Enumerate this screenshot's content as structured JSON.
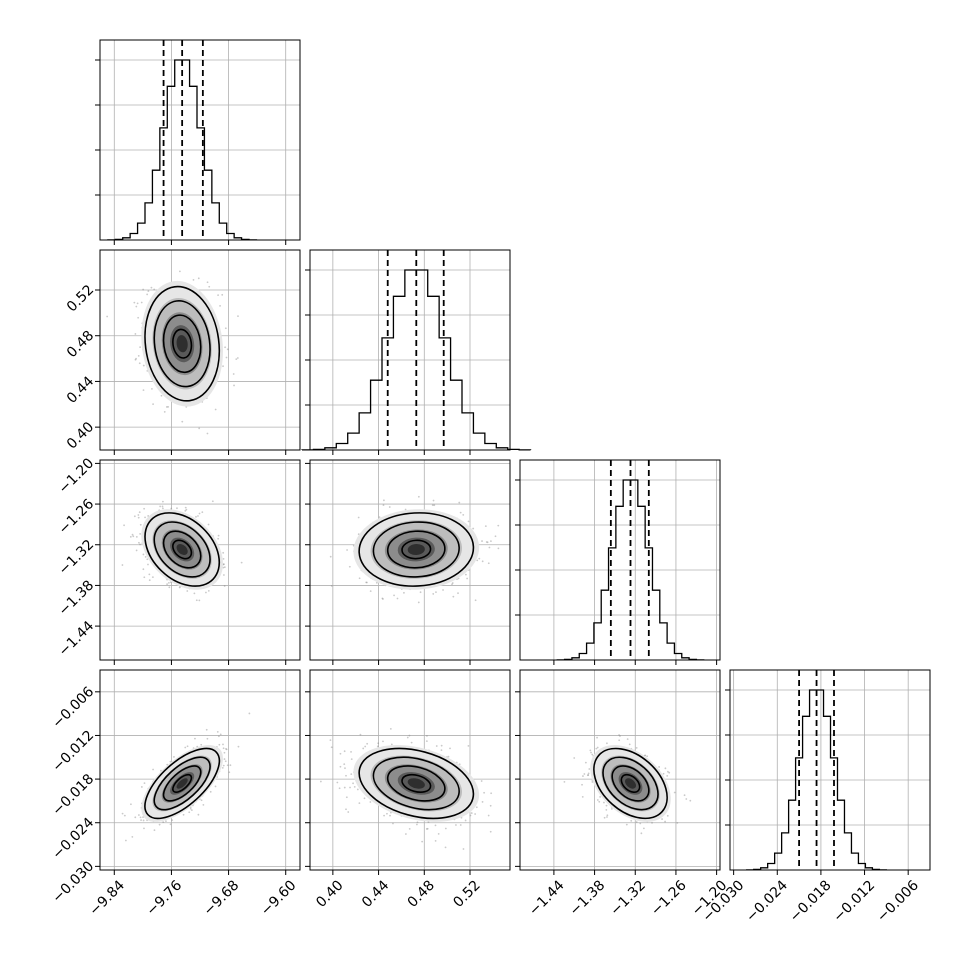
{
  "chart_data": {
    "type": "corner",
    "parameters": [
      {
        "index": 0,
        "range": [
          -9.86,
          -9.58
        ],
        "ticks": [
          -9.84,
          -9.76,
          -9.68,
          -9.6
        ],
        "tick_labels": [
          "−9.84",
          "−9.76",
          "−9.68",
          "−9.60"
        ],
        "mean": -9.745,
        "sd": 0.026,
        "quantiles": [
          -9.771,
          -9.745,
          -9.716
        ]
      },
      {
        "index": 1,
        "range": [
          0.38,
          0.555
        ],
        "ticks": [
          0.4,
          0.44,
          0.48,
          0.52
        ],
        "tick_labels": [
          "0.40",
          "0.44",
          "0.48",
          "0.52"
        ],
        "mean": 0.473,
        "sd": 0.025,
        "quantiles": [
          0.448,
          0.473,
          0.497
        ]
      },
      {
        "index": 2,
        "range": [
          -1.49,
          -1.195
        ],
        "ticks": [
          -1.44,
          -1.38,
          -1.32,
          -1.26,
          -1.2
        ],
        "tick_labels": [
          "−1.44",
          "−1.38",
          "−1.32",
          "−1.26",
          "−1.20"
        ],
        "mean": -1.327,
        "sd": 0.027,
        "quantiles": [
          -1.356,
          -1.327,
          -1.3
        ]
      },
      {
        "index": 3,
        "range": [
          -0.0305,
          -0.003
        ],
        "ticks": [
          -0.03,
          -0.024,
          -0.018,
          -0.012,
          -0.006
        ],
        "tick_labels": [
          "−0.030",
          "−0.024",
          "−0.018",
          "−0.012",
          "−0.006"
        ],
        "mean": -0.0186,
        "sd": 0.0024,
        "quantiles": [
          -0.021,
          -0.0186,
          -0.0162
        ]
      }
    ],
    "correlations": [
      {
        "x": 0,
        "y": 1,
        "r": -0.12
      },
      {
        "x": 0,
        "y": 2,
        "r": -0.35
      },
      {
        "x": 1,
        "y": 2,
        "r": 0.05
      },
      {
        "x": 0,
        "y": 3,
        "r": 0.65
      },
      {
        "x": 1,
        "y": 3,
        "r": -0.3
      },
      {
        "x": 2,
        "y": 3,
        "r": -0.4
      }
    ],
    "histogram_bins": 20,
    "contour_levels_sigma": [
      0.5,
      1.0,
      1.5,
      2.0
    ],
    "quantiles_shown": [
      0.16,
      0.5,
      0.84
    ],
    "grid": true
  }
}
